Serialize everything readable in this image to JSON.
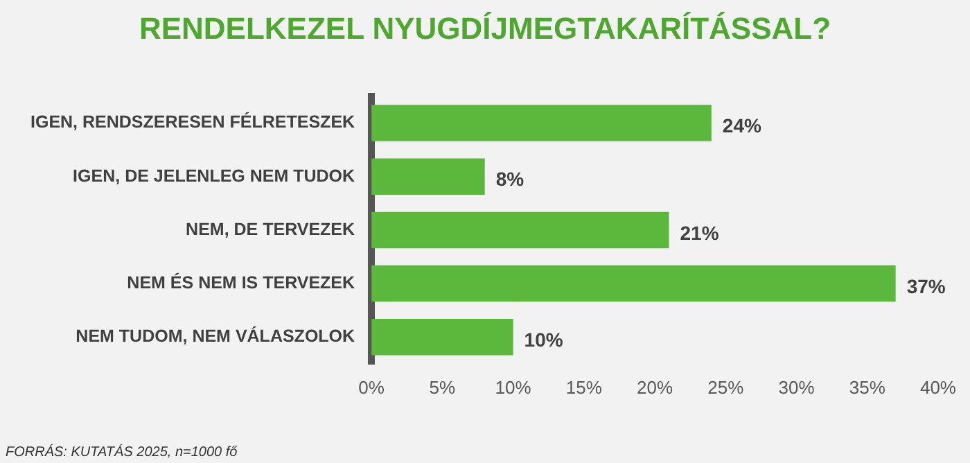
{
  "chart_data": {
    "type": "bar",
    "orientation": "horizontal",
    "title": "RENDELKEZEL NYUGDÍJMEGTAKARÍTÁSSAL?",
    "categories": [
      "IGEN, RENDSZERESEN FÉLRETESZEK",
      "IGEN, DE JELENLEG NEM TUDOK",
      "NEM, DE TERVEZEK",
      "NEM ÉS NEM IS TERVEZEK",
      "NEM TUDOM, NEM VÁLASZOLOK"
    ],
    "values": [
      24,
      8,
      21,
      37,
      10
    ],
    "value_labels": [
      "24%",
      "8%",
      "21%",
      "37%",
      "10%"
    ],
    "color": "#5cb83c",
    "xlim": [
      0,
      40
    ],
    "xticks": [
      {
        "value": 0,
        "label": "0%"
      },
      {
        "value": 5,
        "label": "5%"
      },
      {
        "value": 10,
        "label": "10%"
      },
      {
        "value": 15,
        "label": "15%"
      },
      {
        "value": 20,
        "label": "20%"
      },
      {
        "value": 25,
        "label": "25%"
      },
      {
        "value": 30,
        "label": "30%"
      },
      {
        "value": 35,
        "label": "35%"
      },
      {
        "value": 40,
        "label": "40%"
      }
    ],
    "grid": false,
    "legend": false,
    "annotations": [
      "FORRÁS: KUTATÁS 2025, n=1000 fő"
    ]
  }
}
